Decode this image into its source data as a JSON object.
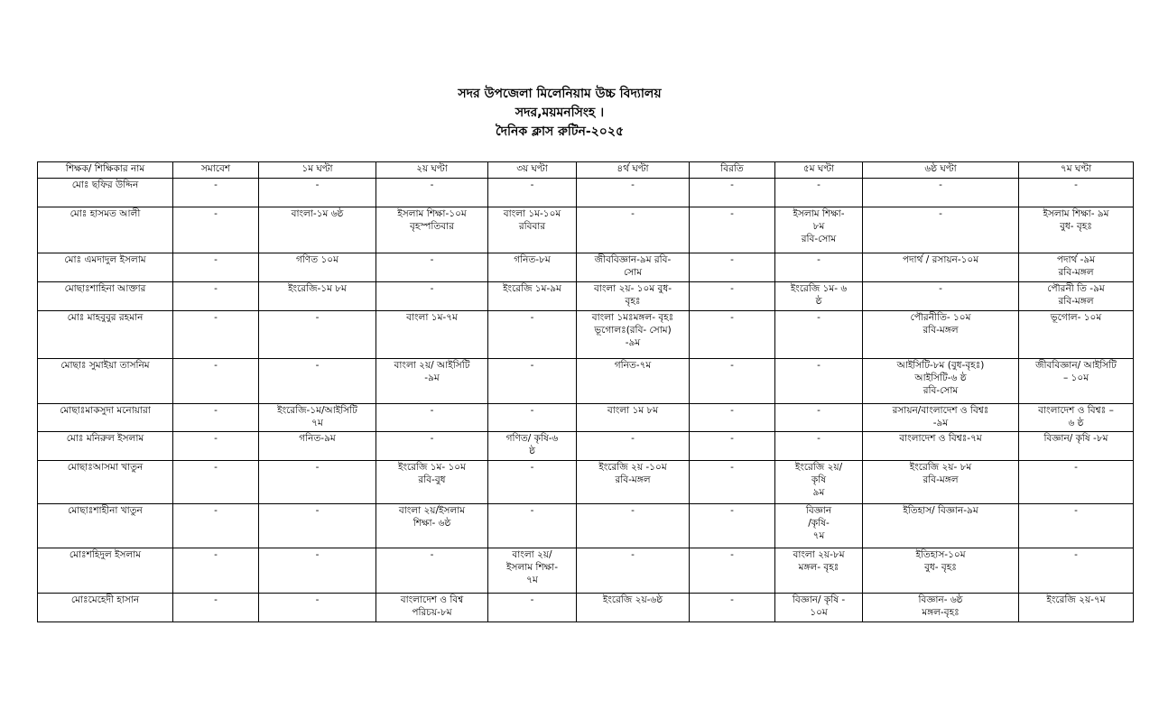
{
  "header": {
    "school": "সদর উপজেলা মিলেনিয়াম উচ্চ বিদ্যালয়",
    "location": "সদর,ময়মনসিংহ ।",
    "title": "দৈনিক ক্লাস রুটিন-২০২৫"
  },
  "table": {
    "columns": [
      "শিক্ষক/ শিক্ষিকার নাম",
      "সমাবেশ",
      "১ম ঘণ্টা",
      "২য় ঘণ্টা",
      "৩য় ঘণ্টা",
      "৪র্থ ঘণ্টা",
      "বিরতি",
      "৫ম ঘণ্টা",
      "৬ষ্ঠ ঘণ্টা",
      "৭ম ঘণ্টা"
    ],
    "rows": [
      [
        "মোঃ ছফির উদ্দিন",
        "-",
        "-",
        "-",
        "-",
        "-",
        "-",
        "-",
        "-",
        "-"
      ],
      [
        "মোঃ হাসমত আলী",
        "-",
        "বাংলা-১ম ৬ষ্ঠ",
        "ইসলাম শিক্ষা-১০ম\nবৃহস্পতিবার",
        "বাংলা ১ম-১০ম\nরবিবার",
        "-",
        "-",
        "ইসলাম শিক্ষা-\n৮ম\nরবি-সোম",
        "-",
        "ইসলাম শিক্ষা- ৯ম\nবুধ- বৃহঃ"
      ],
      [
        "মোঃ এমদাদুল ইসলাম",
        "-",
        "গণিত ১০ম",
        "-",
        "গনিত-৮ম",
        "জীববিজ্ঞান-৯ম রবি-\nসোম",
        "-",
        "-",
        "পদার্থ / রসায়ন-১০ম",
        "পদার্থ -৯ম\nরবি-মঙ্গল"
      ],
      [
        "মোছাঃশাহিনা আক্তার",
        "-",
        "ইংরেজি-১ম ৮ম",
        "-",
        "ইংরেজি ১ম-৯ম",
        "বাংলা ২য়- ১০ম বুধ-\nবৃহঃ",
        "-",
        "ইংরেজি ১ম- ৬\nষ্ঠ",
        "-",
        "পৌরনী তি -৯ম\nরবি-মঙ্গল"
      ],
      [
        "মোঃ মাহবুবুর রহমান",
        "-",
        "-",
        "বাংলা ১ম-৭ম",
        "-",
        "বাংলা ১মঃমঙ্গল- বৃহঃ\nভূগোলঃ(রবি- সোম)\n-৯ম",
        "-",
        "-",
        "পৌরনীতি- ১০ম\nরবি-মঙ্গল",
        "ভূগোল- ১০ম"
      ],
      [
        "মোছাঃ সুমাইয়া তাসনিম",
        "-",
        "-",
        "বাংলা ২য়/ আইসিটি\n-৯ম",
        "-",
        "গনিত-৭ম",
        "-",
        "-",
        "আইসিটি-৮ম (বুধ-বৃহঃ)\nআইসিটি-৬ ষ্ঠ\nরবি-সোম",
        "জীববিজ্ঞান/ আইসিটি\n– ১০ম"
      ],
      [
        "মোছাঃমাকসুদা মনোয়ারা",
        "-",
        "ইংরেজি-১ম/আইসিটি\n৭ম",
        "-",
        "-",
        "বাংলা ১ম ৮ম",
        "-",
        "-",
        "রসায়ন/বাংলাদেশ ও বিশ্বঃ\n-৯ম",
        "বাংলাদেশ ও বিশ্বঃ –\n৬ ষ্ঠ"
      ],
      [
        "মোঃ মনিরুল ইসলাম",
        "-",
        "গনিত-৯ম",
        "-",
        "গণিত/ কৃষি-৬\nষ্ঠ",
        "-",
        "-",
        "-",
        "বাংলাদেশ ও বিশ্বঃ-৭ম",
        "বিজ্ঞান/ কৃষি -৮ম"
      ],
      [
        "মোছাঃআসমা খাতুন",
        "-",
        "-",
        "ইংরেজি ১ম- ১০ম\nরবি-বুধ",
        "-",
        "ইংরেজি ২য় -১০ম\nরবি-মঙ্গল",
        "-",
        "ইংরেজি ২য়/\nকৃষি\n৯ম",
        "ইংরেজি ২য়- ৮ম\nরবি-মঙ্গল",
        "-"
      ],
      [
        "মোছাঃশাহীনা খাতুন",
        "-",
        "-",
        "বাংলা ২য়/ইসলাম\nশিক্ষা- ৬ষ্ঠ",
        "-",
        "-",
        "-",
        "বিজ্ঞান\n/কৃষি-\n৭ম",
        "ইতিহাস/ বিজ্ঞান-৯ম",
        "-"
      ],
      [
        "মোঃশহিদুল ইসলাম",
        "-",
        "-",
        "-",
        "বাংলা ২য়/\nইসলাম শিক্ষা-\n৭ম",
        "-",
        "-",
        "বাংলা ২য়-৮ম\nমঙ্গল- বৃহঃ",
        "ইতিহাস-১০ম\nবুধ- বৃহঃ",
        "-"
      ],
      [
        "মোঃমেহেদী হাসান",
        "-",
        "-",
        "বাংলাদেশ ও বিশ্ব\nপরিচয়-৮ম",
        "-",
        "ইংরেজি ২য়-৬ষ্ঠ",
        "-",
        "বিজ্ঞান/ কৃষি -\n১০ম",
        "বিজ্ঞান- ৬ষ্ঠ\nমঙ্গল-বৃহঃ",
        "ইংরেজি ২য়-৭ম"
      ]
    ]
  }
}
